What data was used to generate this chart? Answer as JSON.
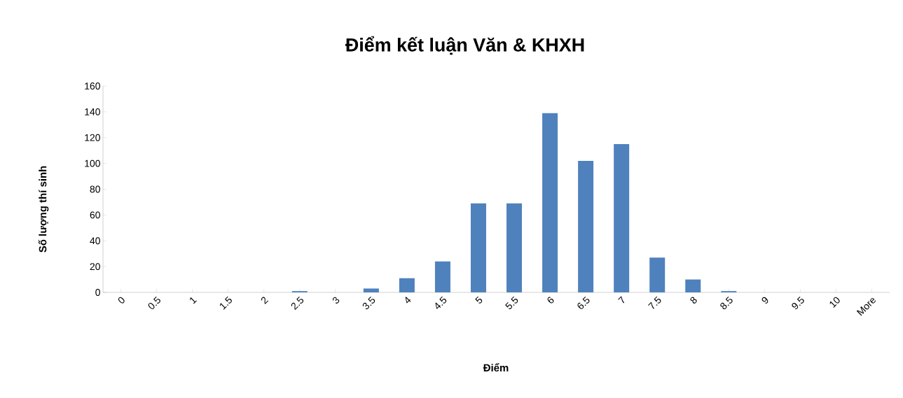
{
  "chart_data": {
    "type": "bar",
    "title": "Điểm kết luận Văn & KHXH",
    "xlabel": "Điểm",
    "ylabel": "Số lượng thí sinh",
    "categories": [
      "0",
      "0.5",
      "1",
      "1.5",
      "2",
      "2.5",
      "3",
      "3.5",
      "4",
      "4.5",
      "5",
      "5.5",
      "6",
      "6.5",
      "7",
      "7.5",
      "8",
      "8.5",
      "9",
      "9.5",
      "10",
      "More"
    ],
    "values": [
      0,
      0,
      0,
      0,
      0,
      1,
      0,
      3,
      11,
      24,
      69,
      69,
      139,
      102,
      115,
      27,
      10,
      1,
      0,
      0,
      0,
      0
    ],
    "color": "#4f81bd",
    "ylim": [
      0,
      160
    ],
    "yticks": [
      0,
      20,
      40,
      60,
      80,
      100,
      120,
      140,
      160
    ]
  }
}
